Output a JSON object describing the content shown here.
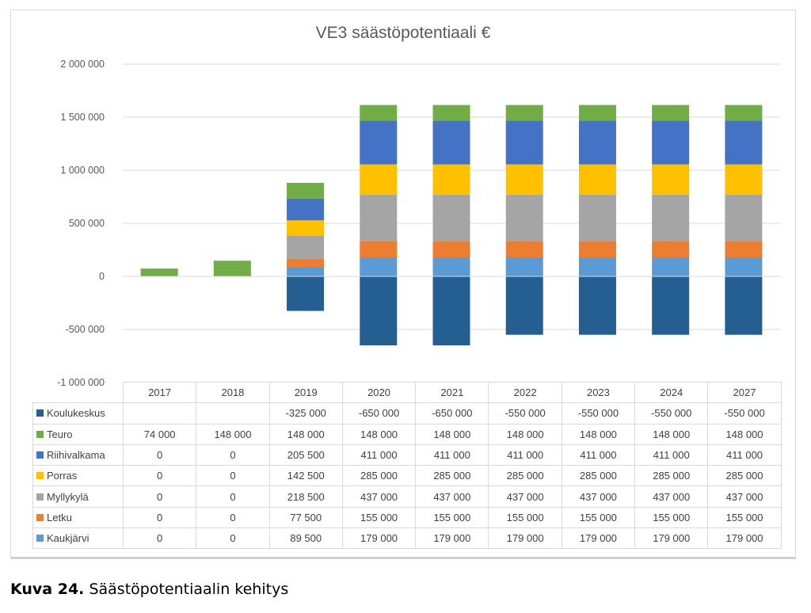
{
  "caption": {
    "label": "Kuva 24.",
    "text": " Säästöpotentiaalin kehitys"
  },
  "chart_data": {
    "type": "bar",
    "stacked": true,
    "title": "VE3 säästöpotentiaali €",
    "categories": [
      "2017",
      "2018",
      "2019",
      "2020",
      "2021",
      "2022",
      "2023",
      "2024",
      "2027"
    ],
    "ylim": [
      -1000000,
      2000000
    ],
    "yticks": [
      2000000,
      1500000,
      1000000,
      500000,
      0,
      -500000,
      -1000000
    ],
    "ytick_labels": [
      "2 000 000",
      "1 500 000",
      "1 000 000",
      "500 000",
      "0",
      "-500 000",
      "-1 000 000"
    ],
    "grid": true,
    "legend": "data table below the plot",
    "series": [
      {
        "name": "Koulukeskus",
        "color": "#255e91",
        "values": [
          null,
          null,
          -325000,
          -650000,
          -650000,
          -550000,
          -550000,
          -550000,
          -550000
        ],
        "labels": [
          "",
          "",
          "-325 000",
          "-650 000",
          "-650 000",
          "-550 000",
          "-550 000",
          "-550 000",
          "-550 000"
        ]
      },
      {
        "name": "Teuro",
        "color": "#70ad47",
        "values": [
          74000,
          148000,
          148000,
          148000,
          148000,
          148000,
          148000,
          148000,
          148000
        ],
        "labels": [
          "74 000",
          "148 000",
          "148 000",
          "148 000",
          "148 000",
          "148 000",
          "148 000",
          "148 000",
          "148 000"
        ]
      },
      {
        "name": "Riihivalkama",
        "color": "#4472c4",
        "values": [
          0,
          0,
          205500,
          411000,
          411000,
          411000,
          411000,
          411000,
          411000
        ],
        "labels": [
          "0",
          "0",
          "205 500",
          "411 000",
          "411 000",
          "411 000",
          "411 000",
          "411 000",
          "411 000"
        ]
      },
      {
        "name": "Porras",
        "color": "#ffc000",
        "values": [
          0,
          0,
          142500,
          285000,
          285000,
          285000,
          285000,
          285000,
          285000
        ],
        "labels": [
          "0",
          "0",
          "142 500",
          "285 000",
          "285 000",
          "285 000",
          "285 000",
          "285 000",
          "285 000"
        ]
      },
      {
        "name": "Myllykylä",
        "color": "#a5a5a5",
        "values": [
          0,
          0,
          218500,
          437000,
          437000,
          437000,
          437000,
          437000,
          437000
        ],
        "labels": [
          "0",
          "0",
          "218 500",
          "437 000",
          "437 000",
          "437 000",
          "437 000",
          "437 000",
          "437 000"
        ]
      },
      {
        "name": "Letku",
        "color": "#ed7d31",
        "values": [
          0,
          0,
          77500,
          155000,
          155000,
          155000,
          155000,
          155000,
          155000
        ],
        "labels": [
          "0",
          "0",
          "77 500",
          "155 000",
          "155 000",
          "155 000",
          "155 000",
          "155 000",
          "155 000"
        ]
      },
      {
        "name": "Kaukjärvi",
        "color": "#5b9bd5",
        "values": [
          0,
          0,
          89500,
          179000,
          179000,
          179000,
          179000,
          179000,
          179000
        ],
        "labels": [
          "0",
          "0",
          "89 500",
          "179 000",
          "179 000",
          "179 000",
          "179 000",
          "179 000",
          "179 000"
        ]
      }
    ],
    "stack_order_bottom_up": [
      "Kaukjärvi",
      "Letku",
      "Myllykylä",
      "Porras",
      "Riihivalkama",
      "Teuro"
    ]
  }
}
